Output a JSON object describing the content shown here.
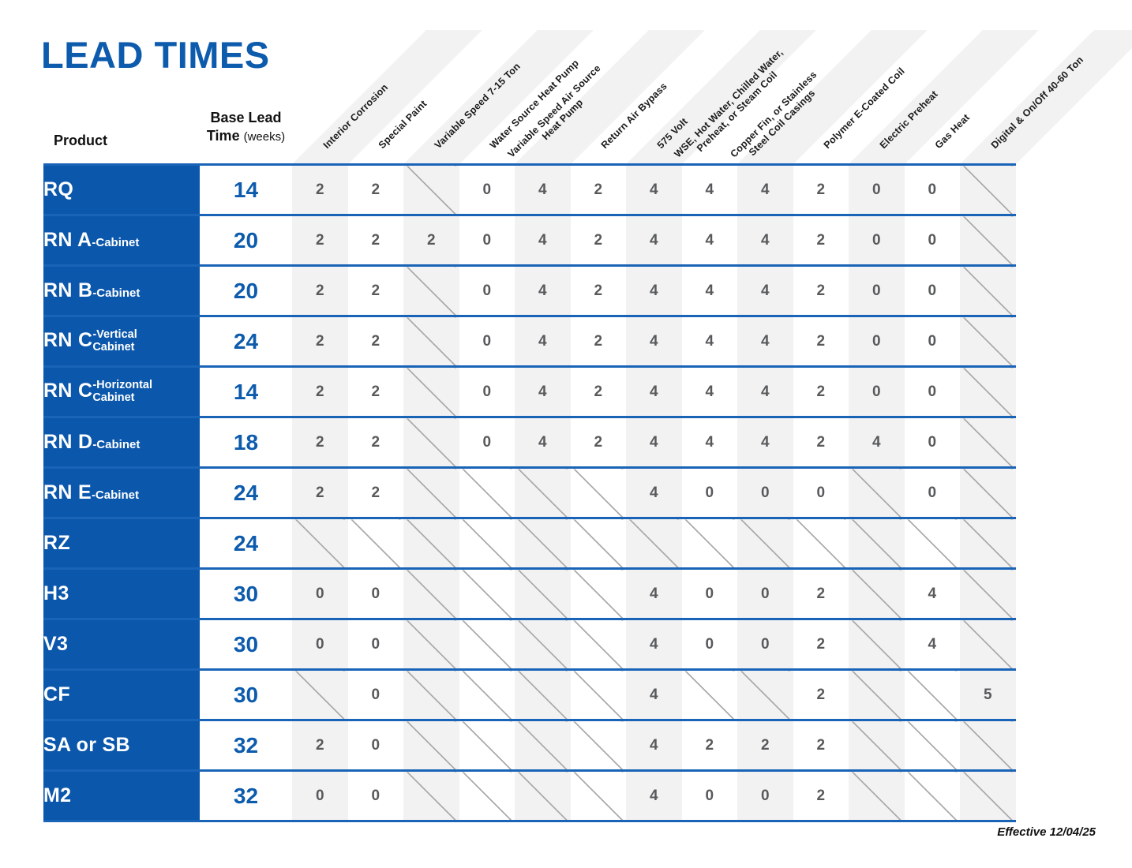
{
  "title": "LEAD TIMES",
  "header": {
    "product_label": "Product",
    "base_lead": {
      "line1": "Base Lead",
      "line2_strong": "Time",
      "line2_unit": "(weeks)"
    }
  },
  "columns": [
    {
      "label": [
        "Interior Corrosion"
      ]
    },
    {
      "label": [
        "Special Paint"
      ]
    },
    {
      "label": [
        "Variable Speed 7-15 Ton"
      ]
    },
    {
      "label": [
        "Water Source Heat Pump"
      ]
    },
    {
      "label": [
        "Variable Speed Air Source",
        "Heat Pump"
      ]
    },
    {
      "label": [
        "Return Air Bypass"
      ]
    },
    {
      "label": [
        "575 Volt"
      ]
    },
    {
      "label": [
        "WSE, Hot Water, Chilled Water,",
        "Preheat, or Steam Coil"
      ]
    },
    {
      "label": [
        "Copper Fin, or Stainless",
        "Steel Coil Casings"
      ]
    },
    {
      "label": [
        "Polymer E-Coated Coil"
      ]
    },
    {
      "label": [
        "Electric Preheat"
      ]
    },
    {
      "label": [
        "Gas Heat"
      ]
    },
    {
      "label": [
        "Digital & On/Off 40-60 Ton"
      ]
    }
  ],
  "rows": [
    {
      "product": "RQ",
      "suffix": null,
      "base": "14",
      "values": [
        2,
        2,
        null,
        0,
        4,
        2,
        4,
        4,
        4,
        2,
        0,
        0,
        null
      ]
    },
    {
      "product": "RN A",
      "suffix": "-Cabinet",
      "base": "20",
      "values": [
        2,
        2,
        2,
        0,
        4,
        2,
        4,
        4,
        4,
        2,
        0,
        0,
        null
      ]
    },
    {
      "product": "RN B",
      "suffix": "-Cabinet",
      "base": "20",
      "values": [
        2,
        2,
        null,
        0,
        4,
        2,
        4,
        4,
        4,
        2,
        0,
        0,
        null
      ]
    },
    {
      "product": "RN C",
      "suffix": [
        "-Vertical",
        "Cabinet"
      ],
      "base": "24",
      "values": [
        2,
        2,
        null,
        0,
        4,
        2,
        4,
        4,
        4,
        2,
        0,
        0,
        null
      ]
    },
    {
      "product": "RN C",
      "suffix": [
        "-Horizontal",
        "Cabinet"
      ],
      "base": "14",
      "values": [
        2,
        2,
        null,
        0,
        4,
        2,
        4,
        4,
        4,
        2,
        0,
        0,
        null
      ]
    },
    {
      "product": "RN D",
      "suffix": "-Cabinet",
      "base": "18",
      "values": [
        2,
        2,
        null,
        0,
        4,
        2,
        4,
        4,
        4,
        2,
        4,
        0,
        null
      ]
    },
    {
      "product": "RN E",
      "suffix": "-Cabinet",
      "base": "24",
      "values": [
        2,
        2,
        null,
        null,
        null,
        null,
        4,
        0,
        0,
        0,
        null,
        0,
        null
      ]
    },
    {
      "product": "RZ",
      "suffix": null,
      "base": "24",
      "values": [
        null,
        null,
        null,
        null,
        null,
        null,
        null,
        null,
        null,
        null,
        null,
        null,
        null
      ]
    },
    {
      "product": "H3",
      "suffix": null,
      "base": "30",
      "values": [
        0,
        0,
        null,
        null,
        null,
        null,
        4,
        0,
        0,
        2,
        null,
        4,
        null
      ]
    },
    {
      "product": "V3",
      "suffix": null,
      "base": "30",
      "values": [
        0,
        0,
        null,
        null,
        null,
        null,
        4,
        0,
        0,
        2,
        null,
        4,
        null
      ]
    },
    {
      "product": "CF",
      "suffix": null,
      "base": "30",
      "values": [
        null,
        0,
        null,
        null,
        null,
        null,
        4,
        null,
        null,
        2,
        null,
        null,
        5
      ]
    },
    {
      "product": "SA or SB",
      "suffix": null,
      "base": "32",
      "values": [
        2,
        0,
        null,
        null,
        null,
        null,
        4,
        2,
        2,
        2,
        null,
        null,
        null
      ]
    },
    {
      "product": "M2",
      "suffix": null,
      "base": "32",
      "values": [
        0,
        0,
        null,
        null,
        null,
        null,
        4,
        0,
        0,
        2,
        null,
        null,
        null
      ]
    }
  ],
  "footer": {
    "effective": "Effective 12/04/25"
  },
  "colors": {
    "accent_blue": "#0d5bad",
    "product_cell_blue": "#0b57ac",
    "row_line_blue": "#1a64b8",
    "column_stripe_gray": "#f2f2f3",
    "value_gray": "#58595b",
    "na_slash_gray": "#ababab"
  }
}
